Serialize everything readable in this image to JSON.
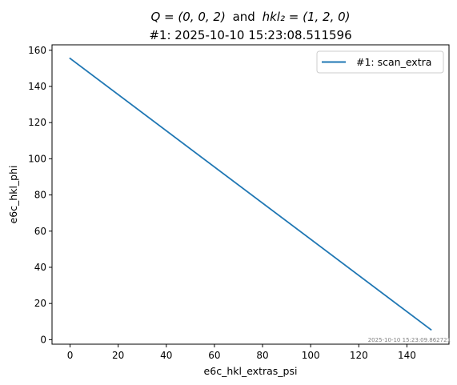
{
  "chart_data": {
    "type": "line",
    "title_line1_prefix": "Q = (0, 0, 2)",
    "title_line1_joiner": "and",
    "title_line1_suffix": "hkl₂ = (1, 2, 0)",
    "title_line2": "#1: 2025-10-10 15:23:08.511596",
    "xlabel": "e6c_hkl_extras_psi",
    "ylabel": "e6c_hkl_phi",
    "xlim": [
      -7.5,
      157.5
    ],
    "ylim": [
      -2.5,
      163
    ],
    "xticks": [
      0,
      20,
      40,
      60,
      80,
      100,
      120,
      140
    ],
    "yticks": [
      0,
      20,
      40,
      60,
      80,
      100,
      120,
      140,
      160
    ],
    "series": [
      {
        "name": "#1: scan_extra",
        "color": "#1f77b4",
        "x": [
          0,
          150
        ],
        "y": [
          155.5,
          5.5
        ]
      }
    ],
    "legend_position": "upper right",
    "timestamp": "2025-10-10 15:23:09.862721"
  }
}
